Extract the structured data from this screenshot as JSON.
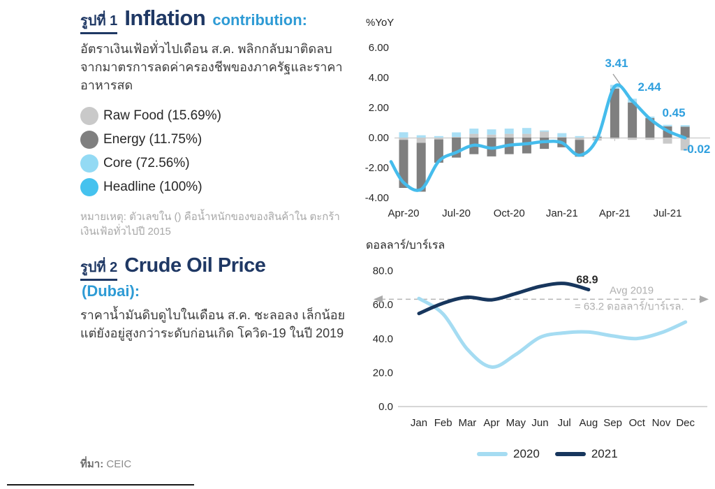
{
  "page": {
    "source_label": "ที่มา:",
    "source_value": "CEIC"
  },
  "figure1": {
    "tag": "รูปที่ 1",
    "title": "Inflation",
    "subtitle": "contribution:",
    "description": "อัตราเงินเฟ้อทั่วไปเดือน ส.ค. พลิกกลับมาติดลบ จากมาตรการลดค่าครองชีพของภาครัฐและราคาอาหารสด",
    "legend": [
      {
        "label": "Raw Food (15.69%)",
        "color": "#C9C9C9"
      },
      {
        "label": "Energy (11.75%)",
        "color": "#7F7F7F"
      },
      {
        "label": "Core (72.56%)",
        "color": "#93DAF4"
      },
      {
        "label": "Headline (100%)",
        "color": "#45C2EE"
      }
    ],
    "note": "หมายเหตุ: ตัวเลขใน () คือน้ำหนักของของสินค้าใน ตะกร้าเงินเฟ้อทั่วไปปี 2015"
  },
  "figure2": {
    "tag": "รูปที่ 2",
    "title": "Crude Oil Price",
    "subtitle": "(Dubai):",
    "description": "ราคาน้ำมันดิบดูไบในเดือน ส.ค. ชะลอลง เล็กน้อย แต่ยังอยู่สูงกว่าระดับก่อนเกิด โควิด-19 ในปี 2019"
  },
  "chart_data": [
    {
      "type": "bar",
      "title": "Inflation contribution",
      "unit_label": "%YoY",
      "ylabel": "%YoY",
      "ylim": [
        -4,
        6
      ],
      "yticks": [
        6,
        4,
        2,
        0,
        -2,
        -4
      ],
      "ytick_labels": [
        "6.00",
        "4.00",
        "2.00",
        "0.00",
        "-2.00",
        "-4.00"
      ],
      "categories": [
        "Apr-20",
        "May-20",
        "Jun-20",
        "Jul-20",
        "Aug-20",
        "Sep-20",
        "Oct-20",
        "Nov-20",
        "Dec-20",
        "Jan-21",
        "Feb-21",
        "Mar-21",
        "Apr-21",
        "May-21",
        "Jun-21",
        "Jul-21",
        "Aug-21"
      ],
      "xtick_labels": [
        "Apr-20",
        "Jul-20",
        "Oct-20",
        "Jan-21",
        "Apr-21",
        "Jul-21"
      ],
      "xtick_indices": [
        0,
        3,
        6,
        9,
        12,
        15
      ],
      "series": [
        {
          "name": "Raw Food",
          "type": "bar",
          "color": "#C9C9C9",
          "values": [
            -0.15,
            -0.35,
            -0.12,
            0.05,
            0.25,
            0.2,
            0.25,
            0.25,
            0.4,
            0.05,
            -0.15,
            -0.2,
            -0.1,
            -0.15,
            -0.15,
            -0.4,
            -0.85
          ]
        },
        {
          "name": "Energy",
          "type": "bar",
          "color": "#7F7F7F",
          "values": [
            -3.2,
            -3.25,
            -1.55,
            -1.33,
            -1.1,
            -1.25,
            -1.1,
            -1.05,
            -0.75,
            -0.64,
            -1.12,
            0.05,
            3.26,
            2.34,
            1.3,
            0.75,
            0.73
          ]
        },
        {
          "name": "Core",
          "type": "bar",
          "color": "#A9DFF5",
          "values": [
            0.36,
            0.16,
            0.1,
            0.3,
            0.35,
            0.35,
            0.35,
            0.39,
            0.08,
            0.25,
            0.1,
            0.07,
            0.25,
            0.25,
            0.1,
            0.1,
            0.1
          ]
        },
        {
          "name": "Headline",
          "type": "line",
          "color": "#45BCEC",
          "values": [
            -2.99,
            -3.44,
            -1.57,
            -0.98,
            -0.5,
            -0.7,
            -0.5,
            -0.41,
            -0.27,
            -0.34,
            -1.17,
            -0.08,
            3.41,
            2.44,
            1.25,
            0.45,
            -0.02
          ]
        }
      ],
      "annotations": [
        {
          "category": "Apr-21",
          "text": "3.41"
        },
        {
          "category": "May-21",
          "text": "2.44"
        },
        {
          "category": "Jul-21",
          "text": "0.45"
        },
        {
          "category": "Aug-21",
          "text": "-0.02"
        }
      ],
      "annotation_color": "#2E9FDE",
      "legend_position": "left-panel",
      "grid": false
    },
    {
      "type": "line",
      "title": "Crude Oil Price (Dubai)",
      "unit_label": "ดอลลาร์/บาร์เรล",
      "ylim": [
        0,
        80
      ],
      "yticks": [
        80,
        60,
        40,
        20,
        0
      ],
      "ytick_labels": [
        "80.0",
        "60.0",
        "40.0",
        "20.0",
        "0.0"
      ],
      "categories": [
        "Jan",
        "Feb",
        "Mar",
        "Apr",
        "May",
        "Jun",
        "Jul",
        "Aug",
        "Sep",
        "Oct",
        "Nov",
        "Dec"
      ],
      "series": [
        {
          "name": "2020",
          "color": "#A5DCF2",
          "values": [
            63.7,
            54.5,
            33.7,
            23.3,
            30.7,
            40.8,
            43.4,
            43.9,
            41.6,
            40.1,
            43.5,
            49.8
          ]
        },
        {
          "name": "2021",
          "color": "#17365D",
          "values": [
            54.8,
            60.9,
            64.4,
            62.9,
            66.6,
            70.8,
            72.5,
            68.9
          ]
        }
      ],
      "avg_line": {
        "value": 63.2,
        "label1": "Avg 2019",
        "label2": "= 63.2 ดอลลาร์/บาร์เรล.",
        "color": "#B5B5B5"
      },
      "end_label": {
        "text": "68.9",
        "series": "2021",
        "at_index": 7
      },
      "legend_position": "bottom",
      "grid": false
    }
  ]
}
